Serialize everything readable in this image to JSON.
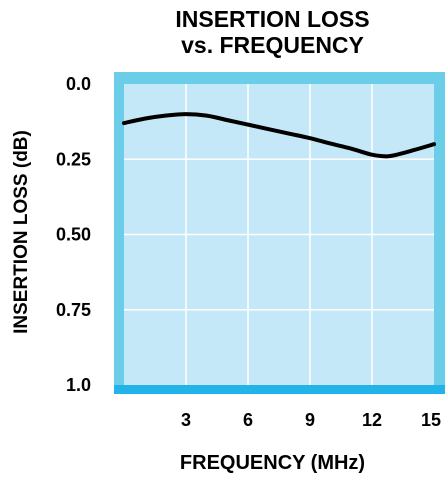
{
  "chart_data": {
    "type": "line",
    "title_line1": "INSERTION LOSS",
    "title_line2": "vs. FREQUENCY",
    "xlabel": "FREQUENCY (MHz)",
    "ylabel": "INSERTION LOSS (dB)",
    "xlim": [
      0,
      15
    ],
    "ylim": [
      0,
      1.0
    ],
    "y_inverted": true,
    "x_ticks": [
      "3",
      "6",
      "9",
      "12",
      "15"
    ],
    "y_ticks": [
      "0.0",
      "0.25",
      "0.50",
      "0.75",
      "1.0"
    ],
    "grid": true,
    "series": [
      {
        "x": [
          0,
          1,
          2,
          3,
          4,
          5,
          6,
          7,
          8,
          9,
          10,
          11,
          12,
          12.6,
          13,
          14,
          15
        ],
        "y": [
          0.13,
          0.115,
          0.105,
          0.1,
          0.105,
          0.12,
          0.135,
          0.15,
          0.165,
          0.18,
          0.198,
          0.215,
          0.235,
          0.24,
          0.238,
          0.22,
          0.2
        ],
        "color": "#000000"
      }
    ],
    "colors": {
      "plot_fill": "#c4e8f8",
      "frame": "#6ccde8",
      "grid": "#ffffff",
      "bottom_band": "#22b4e8"
    }
  }
}
